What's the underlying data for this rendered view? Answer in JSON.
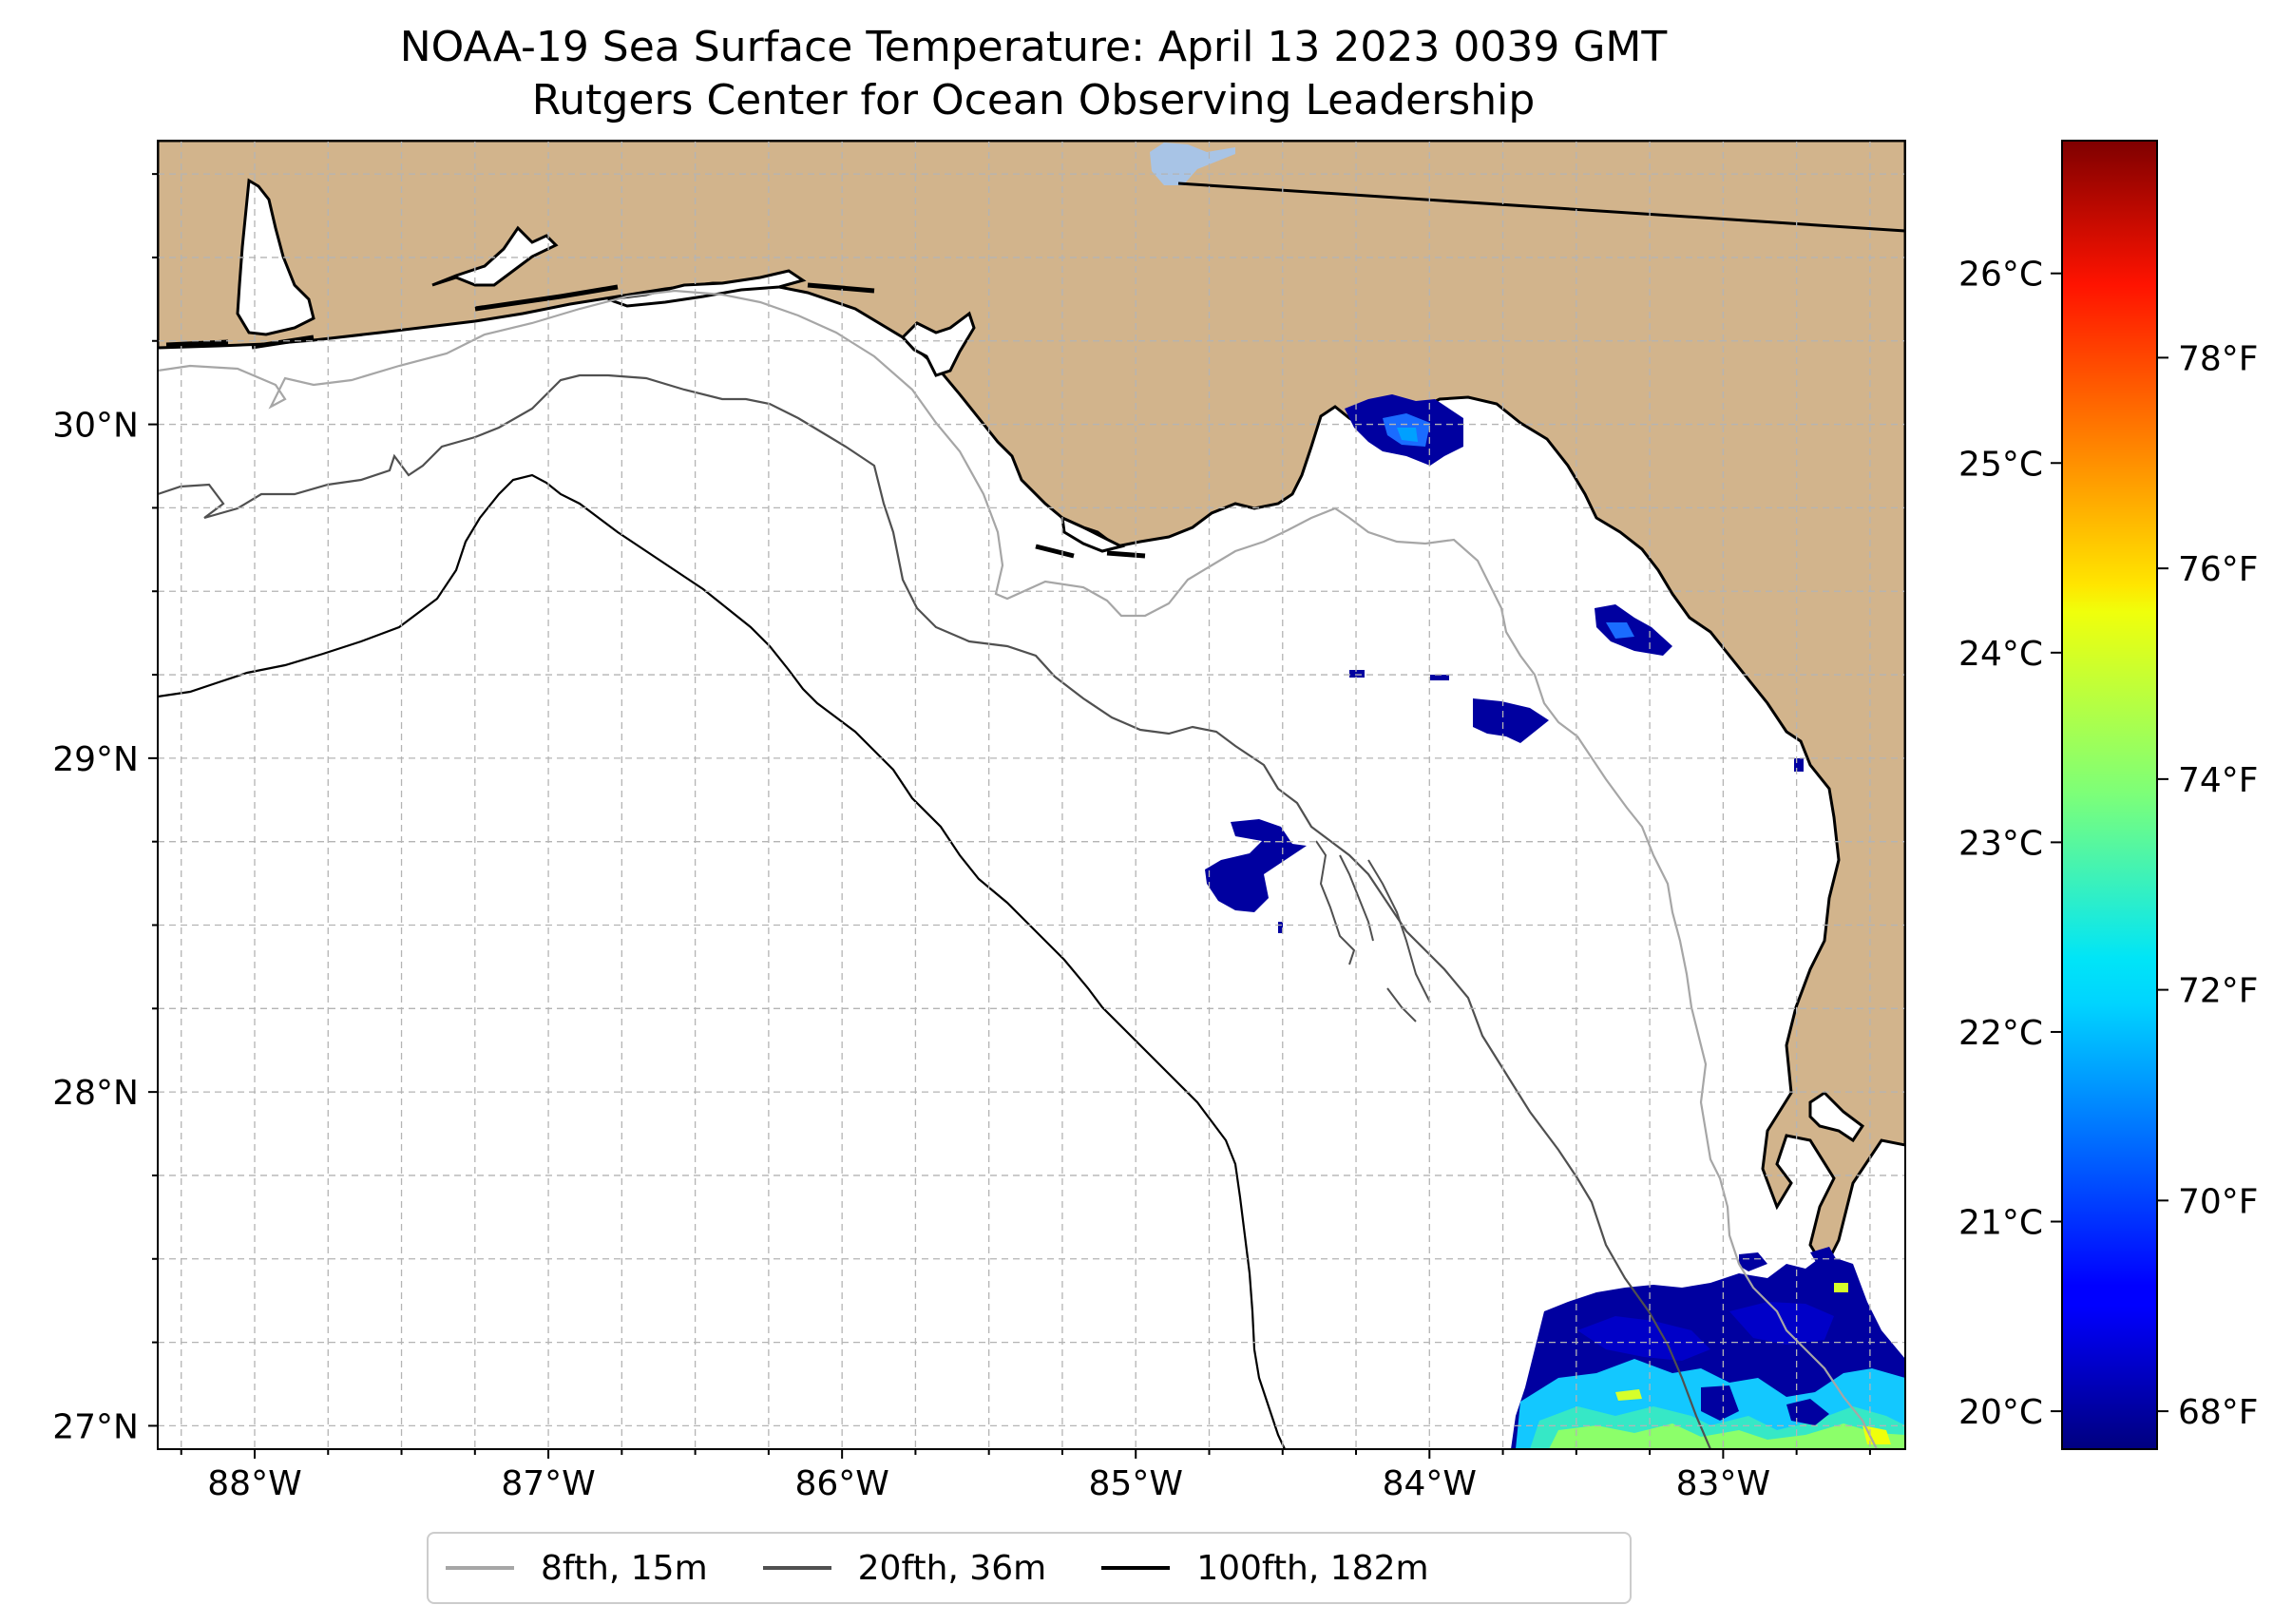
{
  "title": {
    "line1": "NOAA-19 Sea Surface Temperature: April 13 2023 0039 GMT",
    "line2": "Rutgers Center for Ocean Observing Leadership"
  },
  "map": {
    "lon_range": [
      -88.33,
      -82.38
    ],
    "lat_range": [
      26.93,
      30.85
    ],
    "land_color": "#d2b48c",
    "ocean_color": "#ffffff",
    "lake_color": "#a8c4e6",
    "grid_lines": "dashed light gray",
    "lon_ticks": [
      {
        "value": -88,
        "label": "88°W"
      },
      {
        "value": -87,
        "label": "87°W"
      },
      {
        "value": -86,
        "label": "86°W"
      },
      {
        "value": -85,
        "label": "85°W"
      },
      {
        "value": -84,
        "label": "84°W"
      },
      {
        "value": -83,
        "label": "83°W"
      }
    ],
    "lat_ticks": [
      {
        "value": 27,
        "label": "27°N"
      },
      {
        "value": 28,
        "label": "28°N"
      },
      {
        "value": 29,
        "label": "29°N"
      },
      {
        "value": 30,
        "label": "30°N"
      }
    ]
  },
  "colorbar": {
    "colormap": "jet",
    "celsius_range": [
      19.8,
      26.7
    ],
    "celsius_ticks": [
      {
        "value": 20,
        "label": "20°C"
      },
      {
        "value": 21,
        "label": "21°C"
      },
      {
        "value": 22,
        "label": "22°C"
      },
      {
        "value": 23,
        "label": "23°C"
      },
      {
        "value": 24,
        "label": "24°C"
      },
      {
        "value": 25,
        "label": "25°C"
      },
      {
        "value": 26,
        "label": "26°C"
      }
    ],
    "fahrenheit_ticks": [
      {
        "value": 68,
        "label": "68°F"
      },
      {
        "value": 70,
        "label": "70°F"
      },
      {
        "value": 72,
        "label": "72°F"
      },
      {
        "value": 74,
        "label": "74°F"
      },
      {
        "value": 76,
        "label": "76°F"
      },
      {
        "value": 78,
        "label": "78°F"
      }
    ]
  },
  "legend": {
    "placement": "bottom-center",
    "entries": [
      {
        "label": "8fth, 15m",
        "color": "#a6a6a6"
      },
      {
        "label": "20fth, 36m",
        "color": "#505050"
      },
      {
        "label": "100fth, 182m",
        "color": "#000000"
      }
    ]
  }
}
